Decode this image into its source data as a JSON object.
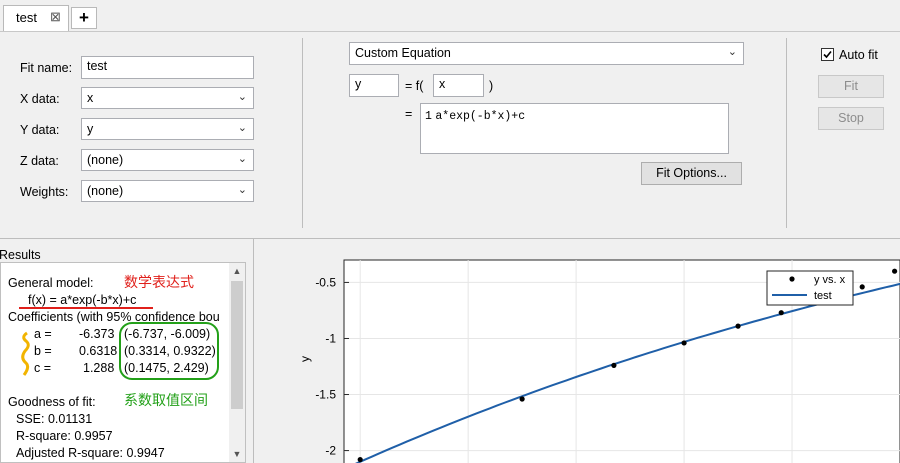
{
  "tab": {
    "label": "test",
    "close": "⊠",
    "add": "+"
  },
  "fit_name": {
    "label": "Fit name:",
    "value": "test"
  },
  "x_data": {
    "label": "X data:",
    "value": "x"
  },
  "y_data": {
    "label": "Y data:",
    "value": "y"
  },
  "z_data": {
    "label": "Z data:",
    "value": "(none)"
  },
  "weights": {
    "label": "Weights:",
    "value": "(none)"
  },
  "equation": {
    "type": "Custom Equation",
    "dependent": "y",
    "equals_f": "= f(",
    "independent": "x",
    "close_paren": ")",
    "equals": "=",
    "line_no": "1",
    "expression": "a*exp(-b*x)+c"
  },
  "fit_options_label": "Fit Options...",
  "auto_fit_label": "Auto fit",
  "fit_label": "Fit",
  "stop_label": "Stop",
  "results": {
    "header": "Results",
    "general_model": "General model:",
    "model_expr": "f(x) = a*exp(-b*x)+c",
    "coef_header": "Coefficients (with 95% confidence bou",
    "coefs": [
      {
        "name": "a =",
        "value": "-6.373",
        "ci": "(-6.737, -6.009)"
      },
      {
        "name": "b =",
        "value": "0.6318",
        "ci": "(0.3314, 0.9322)"
      },
      {
        "name": "c =",
        "value": "1.288",
        "ci": "(0.1475, 2.429)"
      }
    ],
    "gof_header": "Goodness of fit:",
    "sse": "SSE: 0.01131",
    "rsq": "R-square: 0.9957",
    "adj_rsq": "Adjusted R-square: 0.9947"
  },
  "annotations": {
    "formula_note": "数学表达式",
    "interval_note": "系数取值区间",
    "red": "#e0201b",
    "green": "#23a019",
    "yellow": "#f2b400"
  },
  "chart_data": {
    "type": "scatter",
    "ylabel": "y",
    "yticks": [
      "-0.5",
      "-1",
      "-1.5",
      "-2"
    ],
    "ylim": [
      -2.2,
      -0.3
    ],
    "xlim": [
      0.97,
      2.0
    ],
    "legend_position": "top-right",
    "series": [
      {
        "name": "y vs. x",
        "kind": "points",
        "color": "#000000",
        "x": [
          1.0,
          1.3,
          1.47,
          1.6,
          1.7,
          1.78,
          1.84,
          1.89,
          1.93,
          1.99
        ],
        "y": [
          -2.08,
          -1.54,
          -1.24,
          -1.04,
          -0.89,
          -0.77,
          -0.67,
          -0.59,
          -0.54,
          -0.4
        ]
      },
      {
        "name": "test",
        "kind": "line",
        "color": "#1f5fa8",
        "a": -6.373,
        "b": 0.6318,
        "c": 1.288
      }
    ]
  }
}
